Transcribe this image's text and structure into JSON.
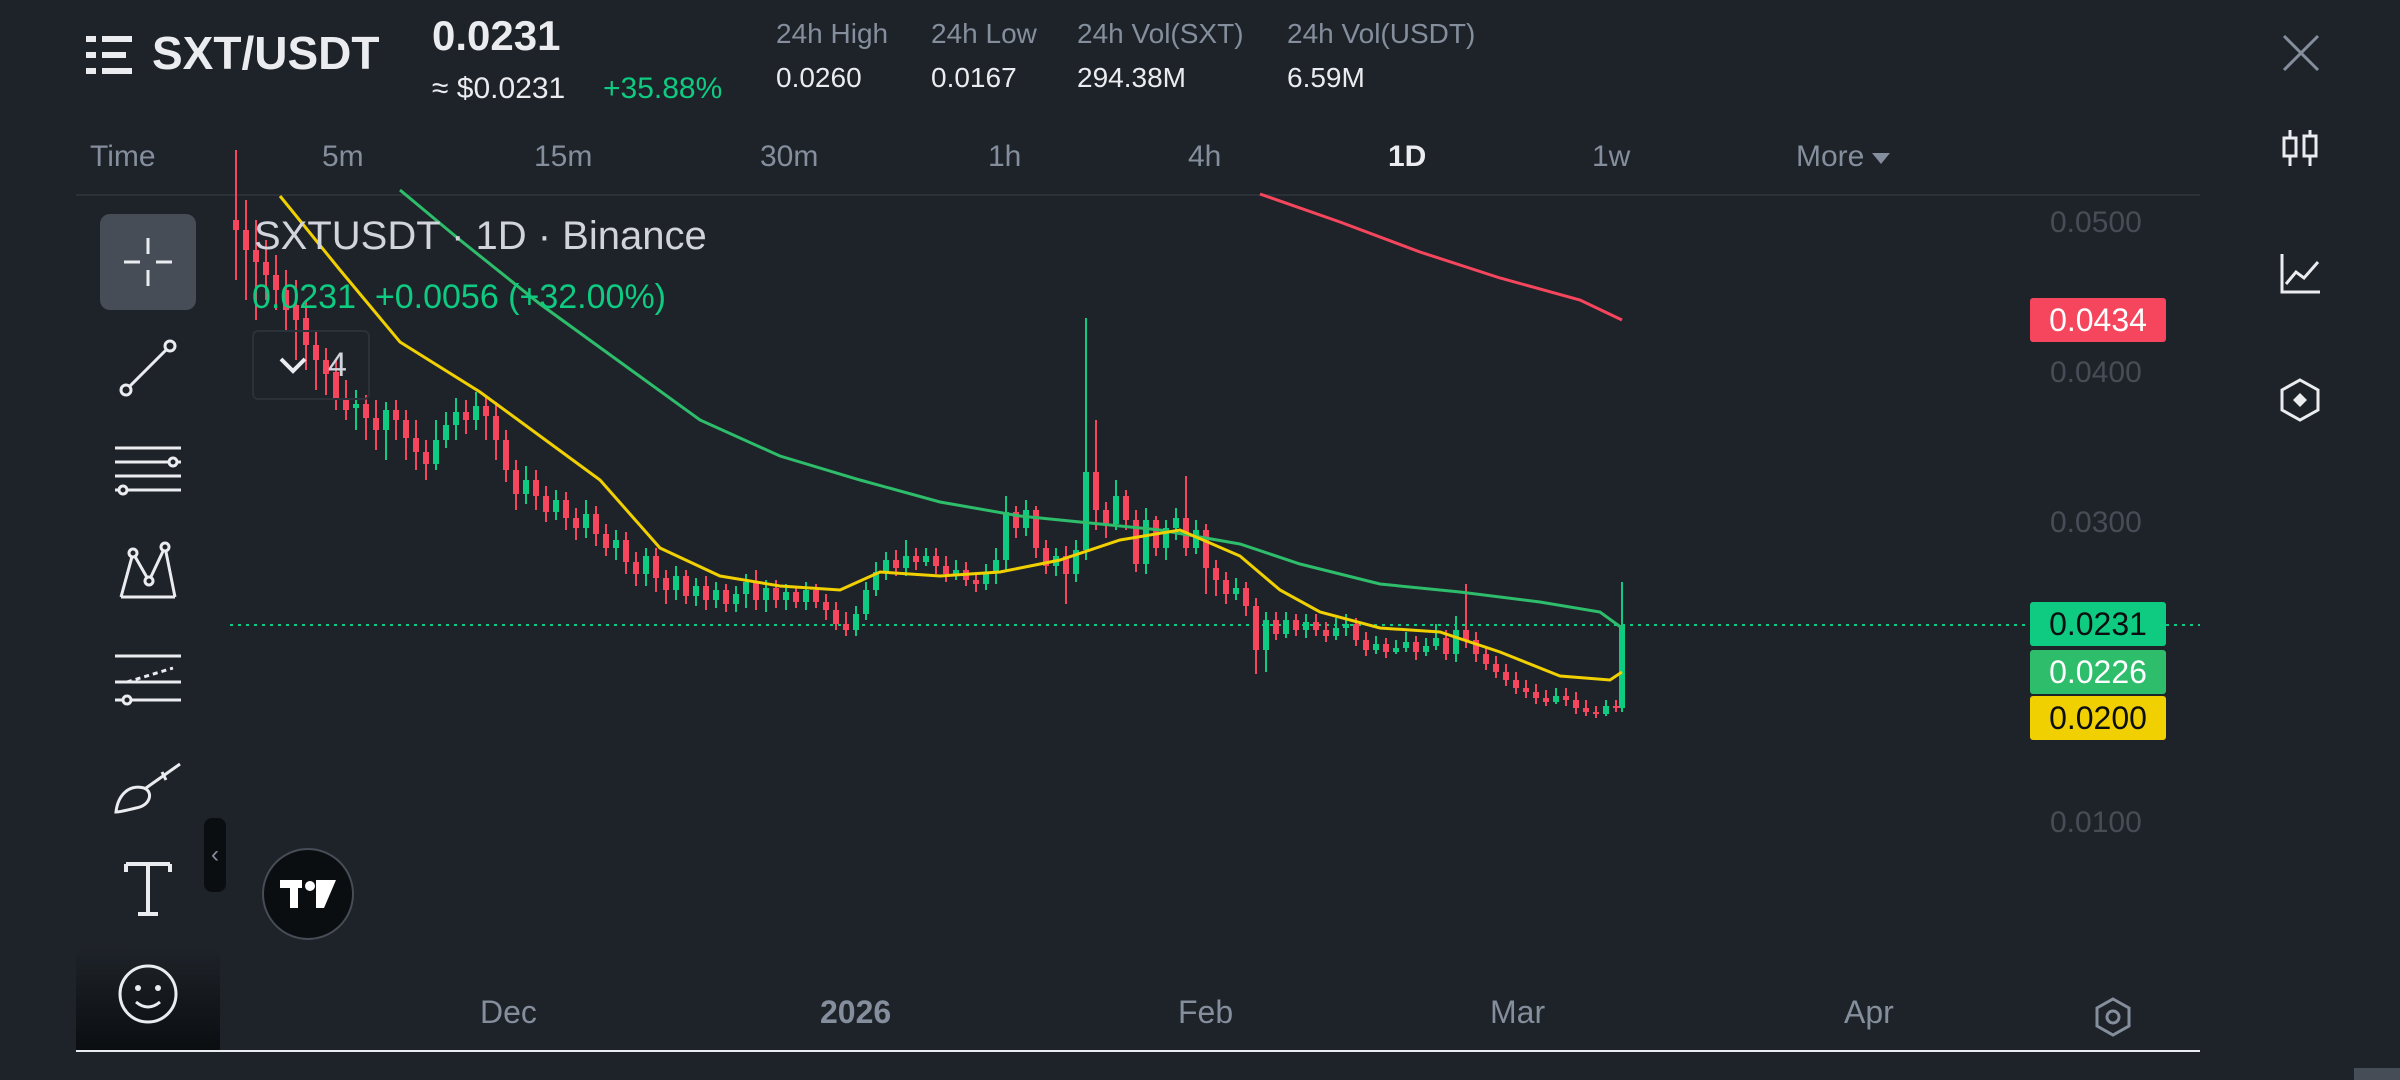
{
  "header": {
    "pair": "SXT/USDT",
    "last_price": "0.0231",
    "usd_price": "≈ $0.0231",
    "change_pct": "+35.88%",
    "stats": [
      {
        "label": "24h High",
        "value": "0.0260"
      },
      {
        "label": "24h Low",
        "value": "0.0167"
      },
      {
        "label": "24h Vol(SXT)",
        "value": "294.38M"
      },
      {
        "label": "24h Vol(USDT)",
        "value": "6.59M"
      }
    ]
  },
  "timebar": {
    "items": [
      "Time",
      "5m",
      "15m",
      "30m",
      "1h",
      "4h",
      "1D",
      "1w",
      "More"
    ],
    "active": "1D"
  },
  "legend": {
    "title": "SXTUSDT · 1D · Binance",
    "values": "0.0231  +0.0056 (+32.00%)",
    "indicator_count": "4"
  },
  "price_axis": {
    "ticks": [
      "0.0500",
      "0.0400",
      "0.0300",
      "0.0100"
    ],
    "labels": [
      {
        "value": "0.0434",
        "color": "#f6465d",
        "text_color": "#ffffff"
      },
      {
        "value": "0.0231",
        "color": "#0ecb81",
        "text_color": "#0b0e11"
      },
      {
        "value": "0.0226",
        "color": "#2ebd6b",
        "text_color": "#ffffff"
      },
      {
        "value": "0.0200",
        "color": "#f0d000",
        "text_color": "#0b0e11"
      }
    ]
  },
  "time_axis": {
    "labels": [
      "Dec",
      "2026",
      "Feb",
      "Mar",
      "Apr"
    ]
  },
  "colors": {
    "up": "#0ecb81",
    "down": "#f6465d",
    "ma_yellow": "#f0d000",
    "ma_green": "#2ebd6b",
    "ma_red": "#f6465d",
    "bg": "#1e2329"
  },
  "chart_data": {
    "type": "candlestick",
    "interval": "1D",
    "ylim": [
      0.005,
      0.055
    ],
    "last_price": 0.0231,
    "ma_last": {
      "red": 0.0434,
      "green": 0.0226,
      "yellow": 0.02
    },
    "icons": [
      "menu-icon",
      "close-icon",
      "candlestick-icon",
      "line-chart-icon",
      "hexagon-icon",
      "crosshair-icon",
      "trendline-icon",
      "fib-icon",
      "pattern-icon",
      "forecast-icon",
      "brush-icon",
      "text-icon",
      "emoji-icon",
      "settings-icon",
      "tradingview-logo"
    ]
  }
}
